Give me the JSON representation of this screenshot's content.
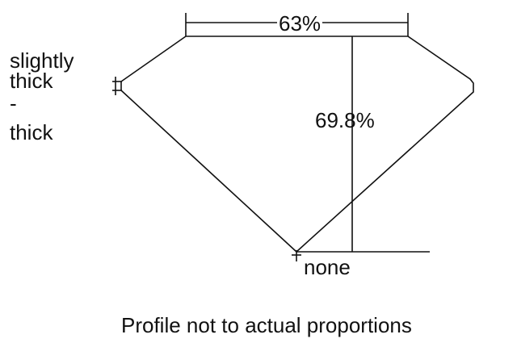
{
  "girdle_label": [
    "slightly",
    "thick",
    "-",
    "thick"
  ],
  "table_percent": "63%",
  "depth_percent": "69.8%",
  "culet_label": "none",
  "caption": "Profile not to actual proportions"
}
